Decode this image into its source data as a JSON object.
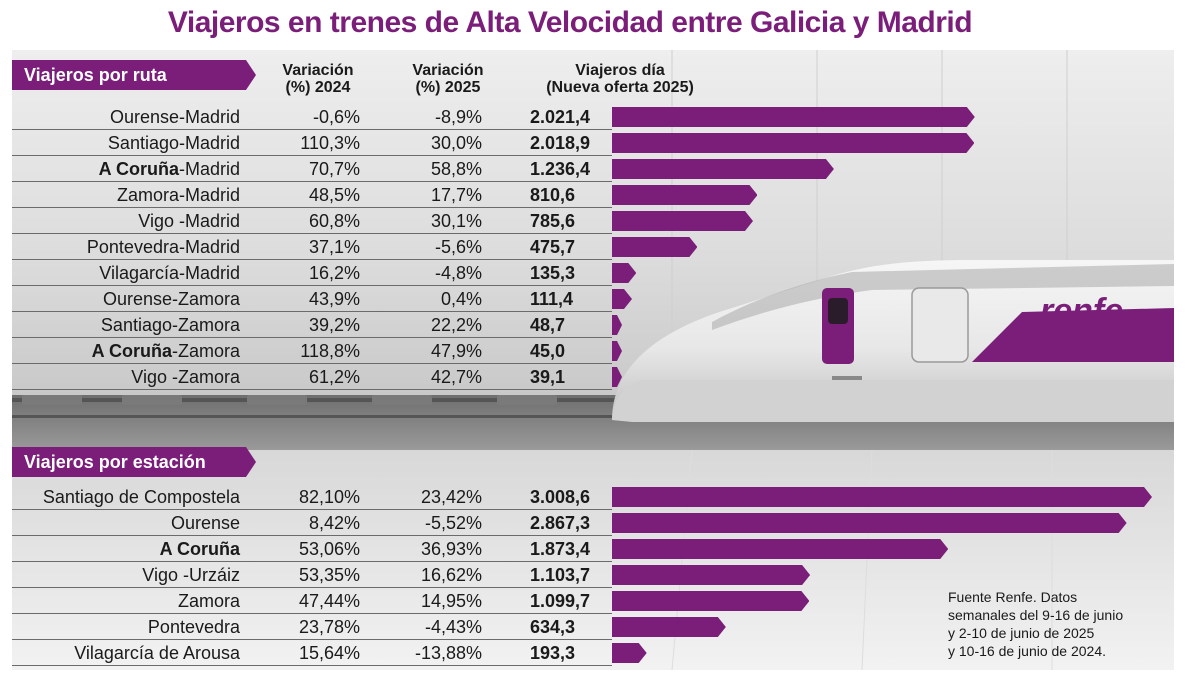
{
  "title": "Viajeros en trenes de Alta Velocidad entre Galicia y Madrid",
  "colors": {
    "accent": "#7b1e7a",
    "text": "#1a1a1a",
    "separator": "#6b6b6b"
  },
  "headers": {
    "section_routes": "Viajeros por ruta",
    "section_stations": "Viajeros por estación",
    "var2024_line1": "Variación",
    "var2024_line2": "(%) 2024",
    "var2025_line1": "Variación",
    "var2025_line2": "(%) 2025",
    "day_line1": "Viajeros día",
    "day_line2": "(Nueva oferta 2025)"
  },
  "routes": [
    {
      "bold": "",
      "rest": "Ourense-Madrid",
      "var2024": "-0,6%",
      "var2025": "-8,9%",
      "day": "2.021,4",
      "value": 2021.4
    },
    {
      "bold": "",
      "rest": "Santiago-Madrid",
      "var2024": "110,3%",
      "var2025": "30,0%",
      "day": "2.018,9",
      "value": 2018.9
    },
    {
      "bold": "A Coruña",
      "rest": "-Madrid",
      "var2024": "70,7%",
      "var2025": "58,8%",
      "day": "1.236,4",
      "value": 1236.4
    },
    {
      "bold": "",
      "rest": "Zamora-Madrid",
      "var2024": "48,5%",
      "var2025": "17,7%",
      "day": "810,6",
      "value": 810.6
    },
    {
      "bold": "",
      "rest": "Vigo -Madrid",
      "var2024": "60,8%",
      "var2025": "30,1%",
      "day": "785,6",
      "value": 785.6
    },
    {
      "bold": "",
      "rest": "Pontevedra-Madrid",
      "var2024": "37,1%",
      "var2025": "-5,6%",
      "day": "475,7",
      "value": 475.7
    },
    {
      "bold": "",
      "rest": "Vilagarcía-Madrid",
      "var2024": "16,2%",
      "var2025": "-4,8%",
      "day": "135,3",
      "value": 135.3
    },
    {
      "bold": "",
      "rest": "Ourense-Zamora",
      "var2024": "43,9%",
      "var2025": "0,4%",
      "day": "111,4",
      "value": 111.4
    },
    {
      "bold": "",
      "rest": "Santiago-Zamora",
      "var2024": "39,2%",
      "var2025": "22,2%",
      "day": "48,7",
      "value": 48.7
    },
    {
      "bold": "A Coruña",
      "rest": "-Zamora",
      "var2024": "118,8%",
      "var2025": "47,9%",
      "day": "45,0",
      "value": 45.0
    },
    {
      "bold": "",
      "rest": "Vigo -Zamora",
      "var2024": "61,2%",
      "var2025": "42,7%",
      "day": "39,1",
      "value": 39.1
    }
  ],
  "stations": [
    {
      "bold": "",
      "rest": "Santiago de Compostela",
      "var2024": "82,10%",
      "var2025": "23,42%",
      "day": "3.008,6",
      "value": 3008.6
    },
    {
      "bold": "",
      "rest": "Ourense",
      "var2024": "8,42%",
      "var2025": "-5,52%",
      "day": "2.867,3",
      "value": 2867.3
    },
    {
      "bold": "A Coruña",
      "rest": "",
      "var2024": "53,06%",
      "var2025": "36,93%",
      "day": "1.873,4",
      "value": 1873.4
    },
    {
      "bold": "",
      "rest": "Vigo -Urzáiz",
      "var2024": "53,35%",
      "var2025": "16,62%",
      "day": "1.103,7",
      "value": 1103.7
    },
    {
      "bold": "",
      "rest": "Zamora",
      "var2024": "47,44%",
      "var2025": "14,95%",
      "day": "1.099,7",
      "value": 1099.7
    },
    {
      "bold": "",
      "rest": "Pontevedra",
      "var2024": "23,78%",
      "var2025": "-4,43%",
      "day": "634,3",
      "value": 634.3
    },
    {
      "bold": "",
      "rest": "Vilagarcía de Arousa",
      "var2024": "15,64%",
      "var2025": "-13,88%",
      "day": "193,3",
      "value": 193.3
    }
  ],
  "note": {
    "line1": "Fuente Renfe. Datos",
    "line2": "semanales del 9-16 de junio",
    "line3": "y 2-10 de junio de 2025",
    "line4": "y 10-16 de junio de 2024."
  },
  "train_logo": "renfe",
  "chart_data": [
    {
      "type": "bar",
      "title": "Viajeros por ruta",
      "categories": [
        "Ourense-Madrid",
        "Santiago-Madrid",
        "A Coruña-Madrid",
        "Zamora-Madrid",
        "Vigo -Madrid",
        "Pontevedra-Madrid",
        "Vilagarcía-Madrid",
        "Ourense-Zamora",
        "Santiago-Zamora",
        "A Coruña-Zamora",
        "Vigo -Zamora"
      ],
      "series": [
        {
          "name": "Viajeros día (Nueva oferta 2025)",
          "values": [
            2021.4,
            2018.9,
            1236.4,
            810.6,
            785.6,
            475.7,
            135.3,
            111.4,
            48.7,
            45.0,
            39.1
          ]
        },
        {
          "name": "Variación (%) 2024",
          "values": [
            -0.6,
            110.3,
            70.7,
            48.5,
            60.8,
            37.1,
            16.2,
            43.9,
            39.2,
            118.8,
            61.2
          ]
        },
        {
          "name": "Variación (%) 2025",
          "values": [
            -8.9,
            30.0,
            58.8,
            17.7,
            30.1,
            -5.6,
            -4.8,
            0.4,
            22.2,
            47.9,
            42.7
          ]
        }
      ],
      "orientation": "horizontal",
      "xlim": [
        0,
        3100
      ]
    },
    {
      "type": "bar",
      "title": "Viajeros por estación",
      "categories": [
        "Santiago de Compostela",
        "Ourense",
        "A Coruña",
        "Vigo -Urzáiz",
        "Zamora",
        "Pontevedra",
        "Vilagarcía de Arousa"
      ],
      "series": [
        {
          "name": "Viajeros día (Nueva oferta 2025)",
          "values": [
            3008.6,
            2867.3,
            1873.4,
            1103.7,
            1099.7,
            634.3,
            193.3
          ]
        },
        {
          "name": "Variación (%) 2024",
          "values": [
            82.1,
            8.42,
            53.06,
            53.35,
            47.44,
            23.78,
            15.64
          ]
        },
        {
          "name": "Variación (%) 2025",
          "values": [
            23.42,
            -5.52,
            36.93,
            16.62,
            14.95,
            -4.43,
            -13.88
          ]
        }
      ],
      "orientation": "horizontal",
      "xlim": [
        0,
        3100
      ]
    }
  ]
}
